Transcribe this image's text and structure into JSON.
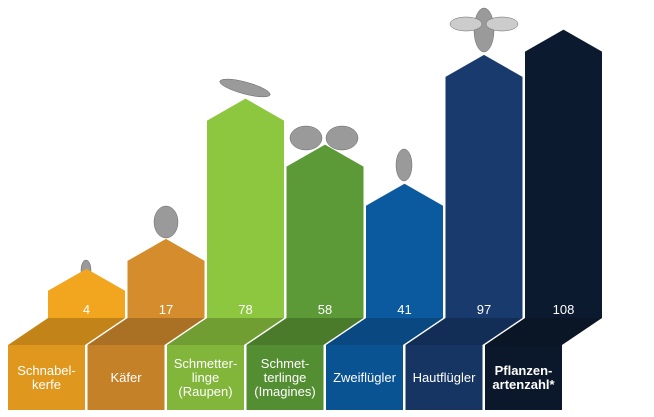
{
  "chart_data": {
    "type": "bar",
    "categories": [
      "Schnabel-\nkerfe",
      "Käfer",
      "Schmetter-\nlinge\n(Raupen)",
      "Schmet-\nterlinge\n(Imagines)",
      "Zweiflügler",
      "Hautflügler",
      "Pflanzen-\nartenzahl*"
    ],
    "values": [
      4,
      17,
      78,
      58,
      41,
      97,
      108
    ],
    "colors": [
      "#f2a51f",
      "#d58c2c",
      "#8dc63f",
      "#5b9a36",
      "#0b5aa0",
      "#183a6c",
      "#0c1a30"
    ]
  }
}
